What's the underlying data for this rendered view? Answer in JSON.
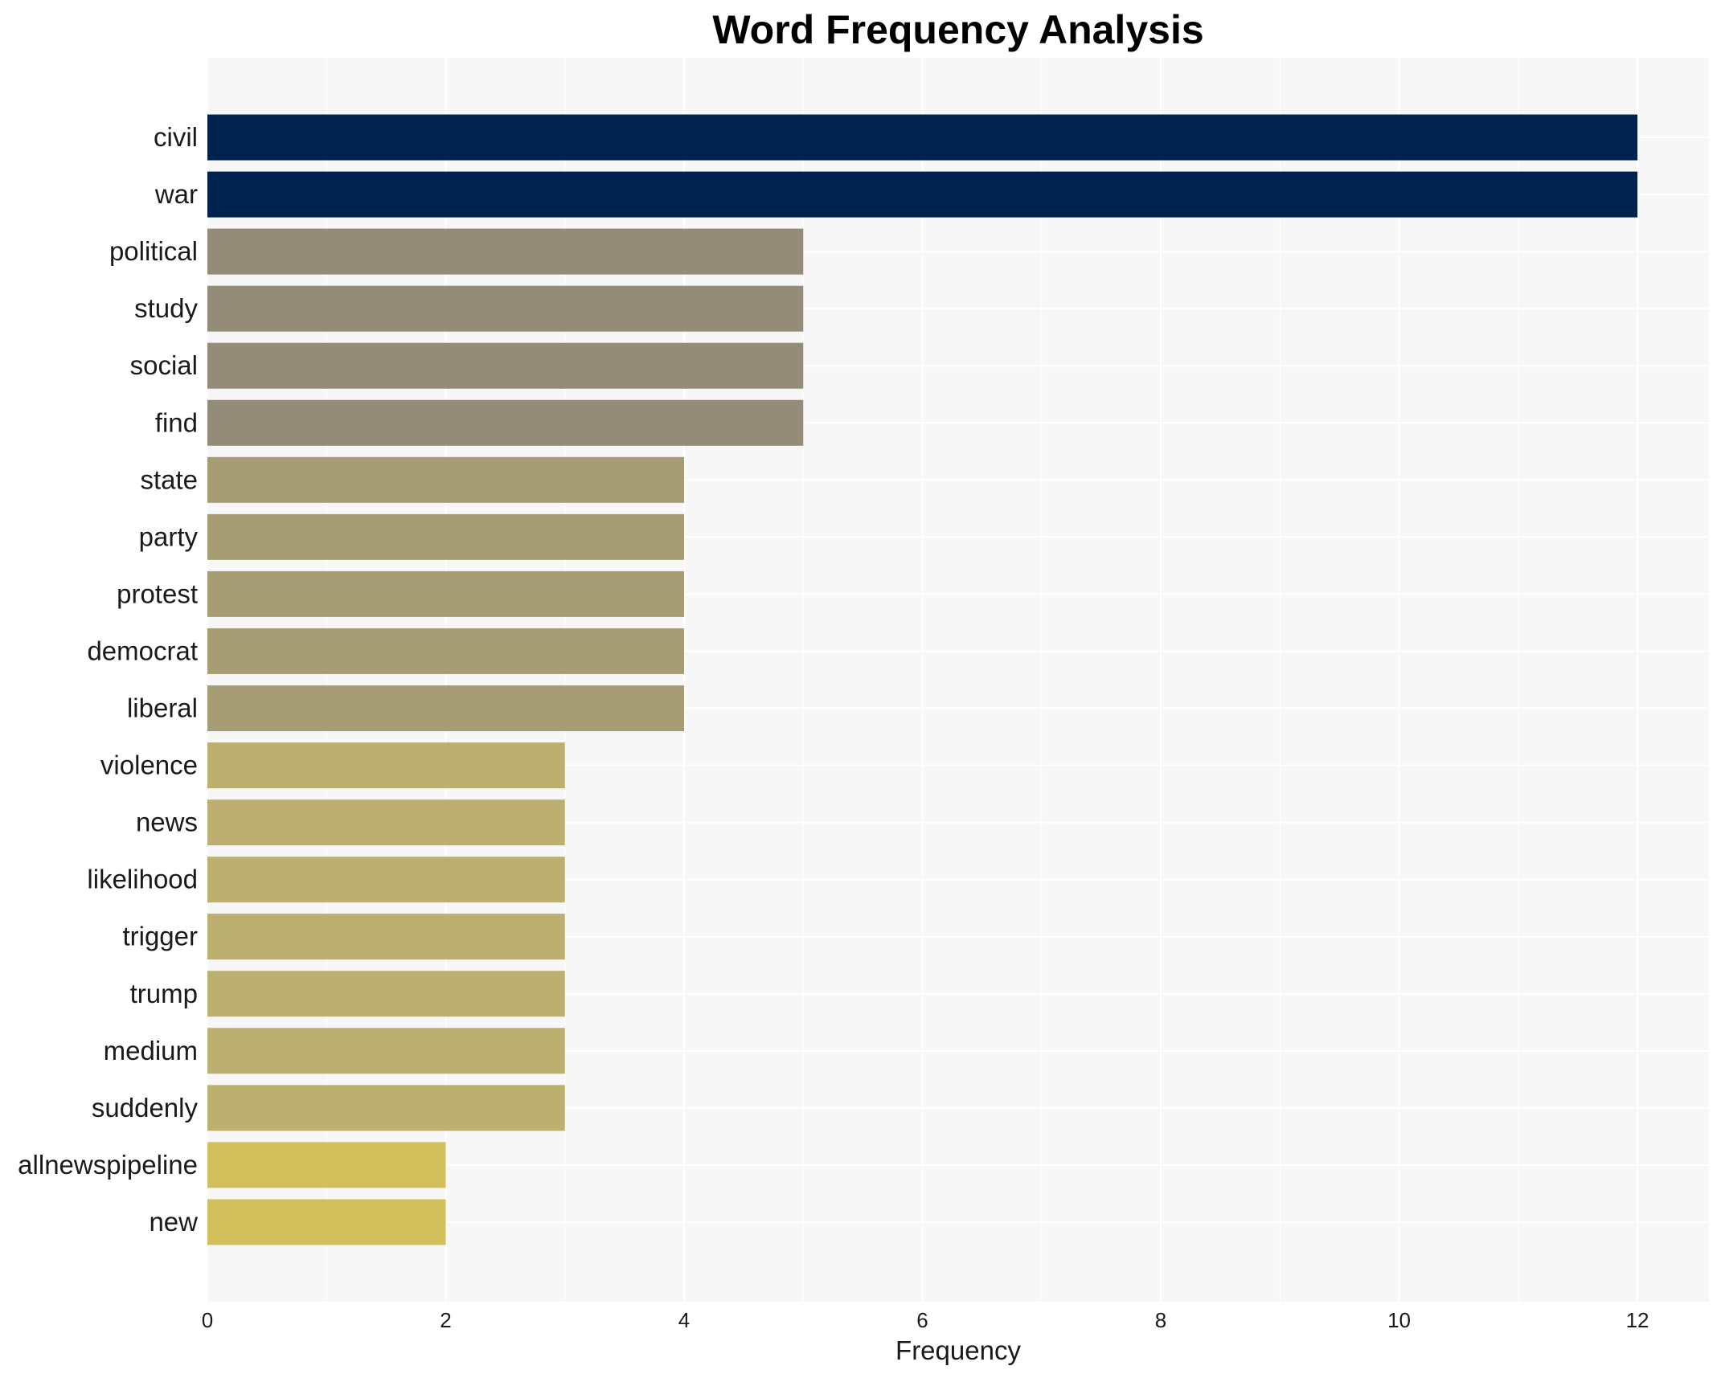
{
  "chart_data": {
    "type": "bar",
    "orientation": "horizontal",
    "title": "Word Frequency Analysis",
    "xlabel": "Frequency",
    "ylabel": "",
    "xlim": [
      0,
      12.6
    ],
    "xticks": [
      0,
      2,
      4,
      6,
      8,
      10,
      12
    ],
    "grid": true,
    "categories": [
      "civil",
      "war",
      "political",
      "study",
      "social",
      "find",
      "state",
      "party",
      "protest",
      "democrat",
      "liberal",
      "violence",
      "news",
      "likelihood",
      "trigger",
      "trump",
      "medium",
      "suddenly",
      "allnewspipeline",
      "new"
    ],
    "values": [
      12,
      12,
      5,
      5,
      5,
      5,
      4,
      4,
      4,
      4,
      4,
      3,
      3,
      3,
      3,
      3,
      3,
      3,
      2,
      2
    ],
    "colors": [
      "#00224e",
      "#00224e",
      "#948c78",
      "#948c78",
      "#948c78",
      "#948c78",
      "#a69d75",
      "#a69d75",
      "#a69d75",
      "#a69d75",
      "#a69d75",
      "#bcaf6f",
      "#bcaf6f",
      "#bcaf6f",
      "#bcaf6f",
      "#bcaf6f",
      "#bcaf6f",
      "#bcaf6f",
      "#d3c05c",
      "#d3c05c"
    ],
    "background": "#f7f7f7",
    "grid_color": "#ffffff"
  }
}
